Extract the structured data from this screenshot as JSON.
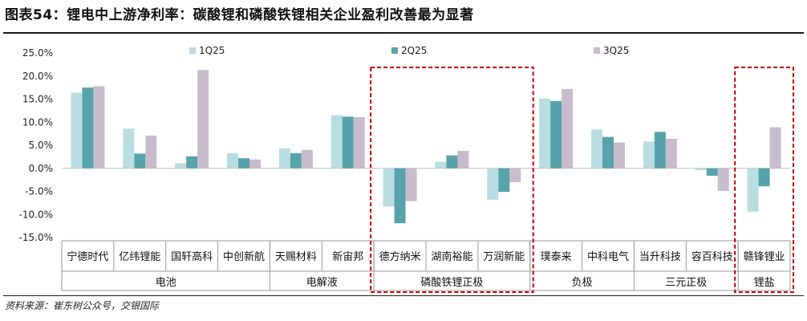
{
  "title": "图表54：锂电中上游净利率：碳酸锂和磷酸铁锂相关企业盈利改善最为显著",
  "source": "资料来源：崔东树公众号，交银国际",
  "colors": {
    "1Q25": "#b9dde0",
    "2Q25": "#58a3ab",
    "3Q25": "#c7bccb",
    "highlight": "#c00000"
  },
  "chart_data": {
    "type": "bar",
    "ylim": [
      -15,
      25
    ],
    "yticks": [
      "25.0%",
      "20.0%",
      "15.0%",
      "10.0%",
      "5.0%",
      "0.0%",
      "-5.0%",
      "-10.0%",
      "-15.0%"
    ],
    "categories": [
      "宁德时代",
      "亿纬锂能",
      "国轩高科",
      "中创新航",
      "天赐材料",
      "新宙邦",
      "德方纳米",
      "湖南裕能",
      "万润新能",
      "璞泰来",
      "中科电气",
      "当升科技",
      "容百科技",
      "赣锋锂业"
    ],
    "series": [
      {
        "name": "1Q25",
        "values": [
          16.4,
          8.6,
          1.1,
          3.3,
          4.3,
          11.5,
          -8.3,
          1.4,
          -6.8,
          15.1,
          8.4,
          5.8,
          -0.4,
          -9.4
        ]
      },
      {
        "name": "2Q25",
        "values": [
          17.5,
          3.2,
          2.6,
          2.2,
          3.3,
          11.2,
          -11.9,
          2.8,
          -5.1,
          14.6,
          6.8,
          7.9,
          -1.6,
          -3.9
        ]
      },
      {
        "name": "3Q25",
        "values": [
          17.8,
          7.1,
          21.3,
          1.9,
          4.0,
          11.1,
          -7.1,
          3.8,
          -3.0,
          17.2,
          5.6,
          6.4,
          -4.9,
          8.9
        ]
      }
    ],
    "groups": [
      {
        "label": "电池",
        "count": 4
      },
      {
        "label": "电解液",
        "count": 2
      },
      {
        "label": "磷酸铁锂正极",
        "count": 3,
        "highlighted": true
      },
      {
        "label": "负极",
        "count": 2
      },
      {
        "label": "三元正极",
        "count": 2
      },
      {
        "label": "锂盐",
        "count": 1,
        "highlighted": true
      }
    ],
    "legend_position": "top"
  }
}
